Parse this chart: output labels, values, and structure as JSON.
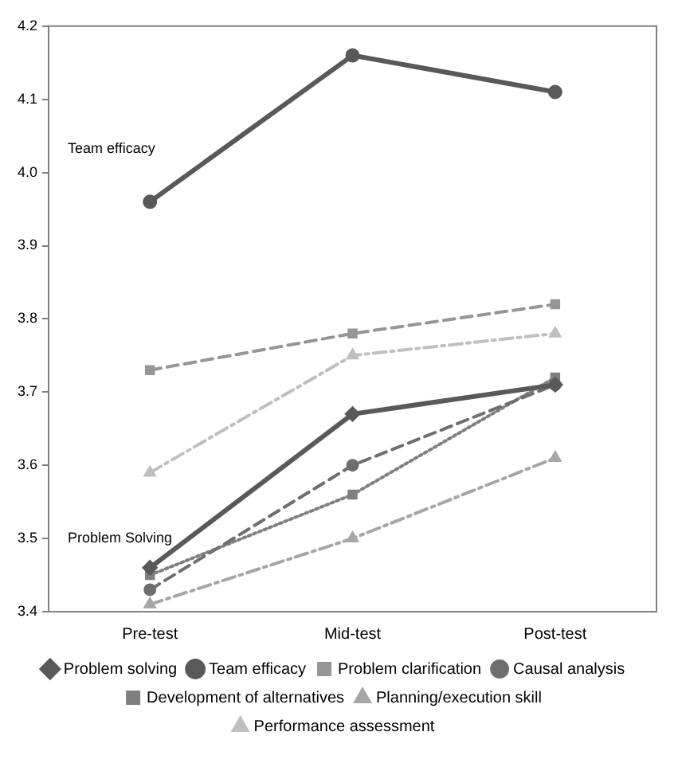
{
  "chart_data": {
    "type": "line",
    "categories": [
      "Pre-test",
      "Mid-test",
      "Post-test"
    ],
    "series": [
      {
        "name": "Problem solving",
        "color": "#595959",
        "values": [
          3.46,
          3.67,
          3.71
        ],
        "marker": "diamond",
        "line_style": "solid"
      },
      {
        "name": "Team efficacy",
        "color": "#595959",
        "values": [
          3.96,
          4.16,
          4.11
        ],
        "marker": "circle",
        "line_style": "solid"
      },
      {
        "name": "Problem clarification",
        "color": "#969696",
        "values": [
          3.73,
          3.78,
          3.82
        ],
        "marker": "square",
        "line_style": "dashed"
      },
      {
        "name": "Causal analysis",
        "color": "#6e6e6e",
        "values": [
          3.43,
          3.6,
          3.71
        ],
        "marker": "circle",
        "line_style": "dashed"
      },
      {
        "name": "Development of alternatives",
        "color": "#7f7f7f",
        "values": [
          3.45,
          3.56,
          3.72
        ],
        "marker": "square",
        "line_style": "dotted"
      },
      {
        "name": "Planning/execution skill",
        "color": "#a6a6a6",
        "values": [
          3.41,
          3.5,
          3.61
        ],
        "marker": "triangle",
        "line_style": "dashdot"
      },
      {
        "name": "Performance assessment",
        "color": "#bfbfbf",
        "values": [
          3.59,
          3.75,
          3.78
        ],
        "marker": "triangle",
        "line_style": "dashdot"
      }
    ],
    "ylim": [
      3.4,
      4.2
    ],
    "yticks": [
      3.4,
      3.5,
      3.6,
      3.7,
      3.8,
      3.9,
      {
        "value": 4.0,
        "label": "4.0"
      },
      4.1,
      4.2
    ],
    "grid": false,
    "legend": "bottom",
    "annotations": [
      "Team efficacy",
      "Problem Solving"
    ]
  }
}
